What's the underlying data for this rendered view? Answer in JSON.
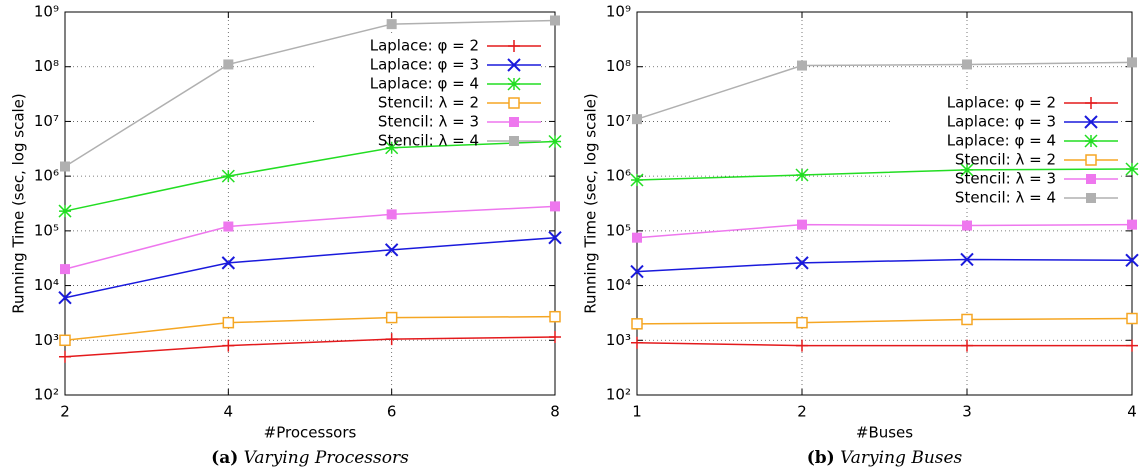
{
  "chart_data": [
    {
      "type": "line",
      "caption_label": "(a)",
      "caption": "Varying Processors",
      "x_label": "#Processors",
      "y_label": "Running Time (sec, log scale)",
      "x": [
        2,
        4,
        6,
        8
      ],
      "xlim": [
        2,
        8
      ],
      "xticks": [
        2,
        4,
        6,
        8
      ],
      "ylim": [
        100,
        1000000000
      ],
      "y_scale": "log",
      "yticks": [
        {
          "value": 100,
          "label": "10²"
        },
        {
          "value": 1000,
          "label": "10³"
        },
        {
          "value": 10000,
          "label": "10⁴"
        },
        {
          "value": 100000,
          "label": "10⁵"
        },
        {
          "value": 1000000,
          "label": "10⁶"
        },
        {
          "value": 10000000,
          "label": "10⁷"
        },
        {
          "value": 100000000,
          "label": "10⁸"
        },
        {
          "value": 1000000000,
          "label": "10⁹"
        }
      ],
      "grid": true,
      "legend": "upper right",
      "series": [
        {
          "name": "Laplace: φ = 2",
          "color": "#e41a1c",
          "marker": "plus",
          "values": [
            500,
            800,
            1050,
            1150
          ]
        },
        {
          "name": "Laplace: φ = 3",
          "color": "#1a1adc",
          "marker": "cross",
          "values": [
            6000,
            26000,
            45000,
            75000
          ]
        },
        {
          "name": "Laplace: φ = 4",
          "color": "#22dd22",
          "marker": "star",
          "values": [
            230000,
            1000000,
            3300000,
            4300000
          ]
        },
        {
          "name": "Stencil: λ = 2",
          "color": "#f5a623",
          "marker": "square-open",
          "values": [
            1000,
            2100,
            2600,
            2700
          ]
        },
        {
          "name": "Stencil: λ = 3",
          "color": "#ee77ee",
          "marker": "square",
          "values": [
            20000,
            120000,
            200000,
            280000
          ]
        },
        {
          "name": "Stencil: λ = 4",
          "color": "#b0b0b0",
          "marker": "square",
          "values": [
            1500000,
            110000000,
            600000000,
            700000000
          ]
        }
      ]
    },
    {
      "type": "line",
      "caption_label": "(b)",
      "caption": "Varying Buses",
      "x_label": "#Buses",
      "y_label": "Running Time (sec, log scale)",
      "x": [
        1,
        2,
        3,
        4
      ],
      "xlim": [
        1,
        4
      ],
      "xticks": [
        1,
        2,
        3,
        4
      ],
      "ylim": [
        100,
        1000000000
      ],
      "y_scale": "log",
      "yticks": [
        {
          "value": 100,
          "label": "10²"
        },
        {
          "value": 1000,
          "label": "10³"
        },
        {
          "value": 10000,
          "label": "10⁴"
        },
        {
          "value": 100000,
          "label": "10⁵"
        },
        {
          "value": 1000000,
          "label": "10⁶"
        },
        {
          "value": 10000000,
          "label": "10⁷"
        },
        {
          "value": 100000000,
          "label": "10⁸"
        },
        {
          "value": 1000000000,
          "label": "10⁹"
        }
      ],
      "grid": true,
      "legend": "upper right",
      "series": [
        {
          "name": "Laplace: φ = 2",
          "color": "#e41a1c",
          "marker": "plus",
          "values": [
            900,
            800,
            800,
            800
          ]
        },
        {
          "name": "Laplace: φ = 3",
          "color": "#1a1adc",
          "marker": "cross",
          "values": [
            18000,
            26000,
            30000,
            29000
          ]
        },
        {
          "name": "Laplace: φ = 4",
          "color": "#22dd22",
          "marker": "star",
          "values": [
            850000,
            1050000,
            1300000,
            1350000
          ]
        },
        {
          "name": "Stencil: λ = 2",
          "color": "#f5a623",
          "marker": "square-open",
          "values": [
            2000,
            2100,
            2400,
            2500
          ]
        },
        {
          "name": "Stencil: λ = 3",
          "color": "#ee77ee",
          "marker": "square",
          "values": [
            75000,
            130000,
            125000,
            130000
          ]
        },
        {
          "name": "Stencil: λ = 4",
          "color": "#b0b0b0",
          "marker": "square",
          "values": [
            11000000,
            105000000,
            110000000,
            120000000
          ]
        }
      ]
    }
  ]
}
